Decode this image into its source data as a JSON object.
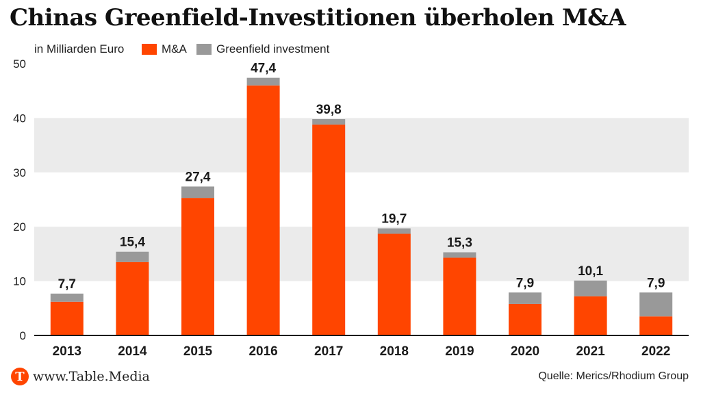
{
  "title": "Chinas Greenfield-Investitionen überholen M&A",
  "unit_label": "in Milliarden Euro",
  "legend": [
    {
      "label": "M&A",
      "color": "#ff4500"
    },
    {
      "label": "Greenfield investment",
      "color": "#999999"
    }
  ],
  "colors": {
    "ma": "#ff4500",
    "greenfield": "#999999",
    "band": "#ebebeb",
    "axis": "#1a1a1a"
  },
  "chart_data": {
    "type": "bar",
    "stacked": true,
    "categories": [
      "2013",
      "2014",
      "2015",
      "2016",
      "2017",
      "2018",
      "2019",
      "2020",
      "2021",
      "2022"
    ],
    "series": [
      {
        "name": "M&A",
        "values": [
          6.2,
          13.5,
          25.3,
          46.0,
          38.8,
          18.7,
          14.3,
          5.8,
          7.2,
          3.5
        ]
      },
      {
        "name": "Greenfield investment",
        "values": [
          1.5,
          1.9,
          2.1,
          1.4,
          1.0,
          1.0,
          1.0,
          2.1,
          2.9,
          4.4
        ]
      }
    ],
    "totals_labels": [
      "7,7",
      "15,4",
      "27,4",
      "47,4",
      "39,8",
      "19,7",
      "15,3",
      "7,9",
      "10,1",
      "7,9"
    ],
    "totals": [
      7.7,
      15.4,
      27.4,
      47.4,
      39.8,
      19.7,
      15.3,
      7.9,
      10.1,
      7.9
    ],
    "yticks": [
      0,
      10,
      20,
      30,
      40,
      50
    ],
    "ylim": [
      0,
      50
    ],
    "legend_position": "top"
  },
  "footer": {
    "brand_letter": "T",
    "brand_text": "www.Table.Media",
    "source": "Quelle: Merics/Rhodium Group"
  }
}
